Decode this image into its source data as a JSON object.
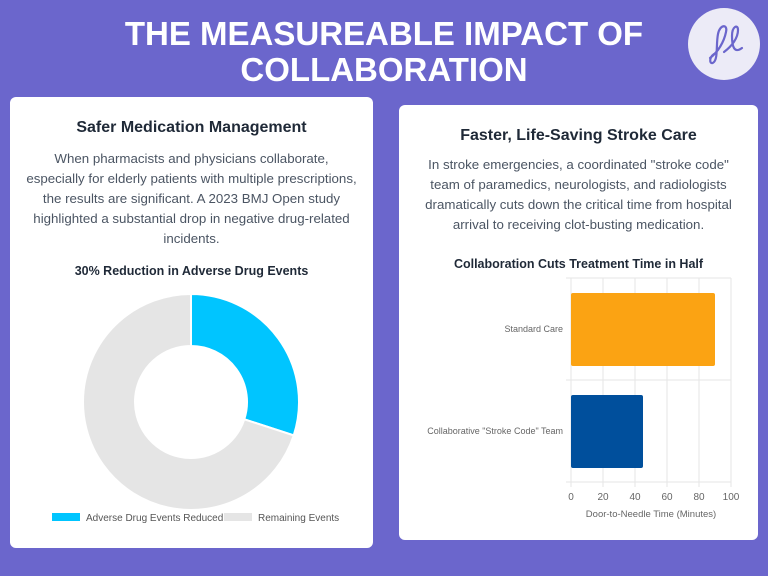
{
  "header": {
    "title_line1": "THE MEASUREABLE IMPACT OF",
    "title_line2": "COLLABORATION",
    "logo_text": "fl"
  },
  "left_card": {
    "heading": "Safer Medication Management",
    "body": "When pharmacists and physicians collaborate, especially for elderly patients with multiple prescriptions, the results are significant. A 2023 BMJ Open study highlighted a substantial drop in negative drug-related incidents."
  },
  "right_card": {
    "heading": "Faster, Life-Saving Stroke Care",
    "body": "In stroke emergencies, a coordinated \"stroke code\" team of paramedics, neurologists, and radiologists dramatically cuts down the critical time from hospital arrival to receiving clot-busting medication."
  },
  "chart_data": [
    {
      "type": "pie",
      "subtype": "donut",
      "title": "30% Reduction in Adverse Drug Events",
      "labels": [
        "Adverse Drug Events Reduced",
        "Remaining Events"
      ],
      "values": [
        30,
        70
      ],
      "colors": [
        "#00c5ff",
        "#e5e5e5"
      ],
      "legend": "bottom"
    },
    {
      "type": "bar",
      "orientation": "horizontal",
      "title": "Collaboration Cuts Treatment Time in Half",
      "categories": [
        "Standard Care",
        "Collaborative \"Stroke Code\" Team"
      ],
      "values": [
        90,
        45
      ],
      "colors": [
        "#fba313",
        "#004f9c"
      ],
      "xlabel": "Door-to-Needle Time (Minutes)",
      "xlim": [
        0,
        100
      ],
      "xticks": [
        0,
        20,
        40,
        60,
        80,
        100
      ],
      "grid": true
    }
  ]
}
